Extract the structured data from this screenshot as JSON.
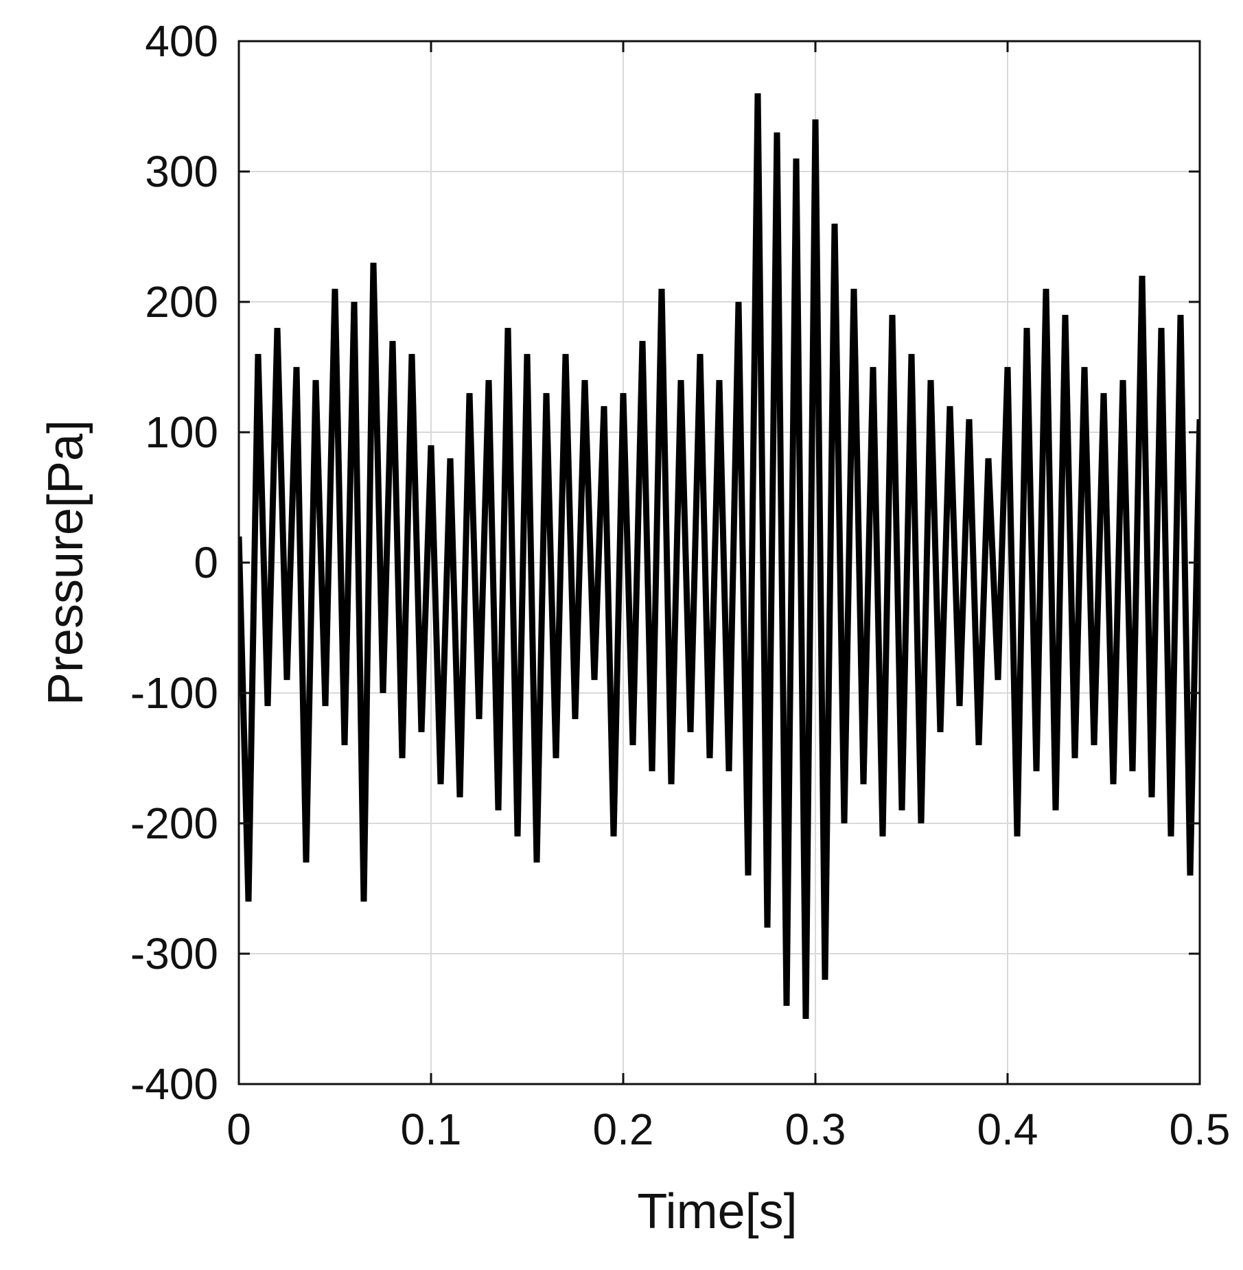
{
  "chart_data": {
    "type": "line",
    "title": "",
    "xlabel": "Time[s]",
    "ylabel": "Pressure[Pa]",
    "xlim": [
      0,
      0.5
    ],
    "ylim": [
      -400,
      400
    ],
    "x_ticks": [
      "0",
      "0.1",
      "0.2",
      "0.3",
      "0.4",
      "0.5"
    ],
    "y_ticks": [
      "400",
      "300",
      "200",
      "100",
      "0",
      "-100",
      "-200",
      "-300",
      "-400"
    ],
    "grid": true,
    "line_color": "#000000",
    "series": [
      {
        "x": [
          0.0,
          0.005,
          0.01,
          0.015,
          0.02,
          0.025,
          0.03,
          0.035,
          0.04,
          0.045,
          0.05,
          0.055,
          0.06,
          0.065,
          0.07,
          0.075,
          0.08,
          0.085,
          0.09,
          0.095,
          0.1,
          0.105,
          0.11,
          0.115,
          0.12,
          0.125,
          0.13,
          0.135,
          0.14,
          0.145,
          0.15,
          0.155,
          0.16,
          0.165,
          0.17,
          0.175,
          0.18,
          0.185,
          0.19,
          0.195,
          0.2,
          0.205,
          0.21,
          0.215,
          0.22,
          0.225,
          0.23,
          0.235,
          0.24,
          0.245,
          0.25,
          0.255,
          0.26,
          0.265,
          0.27,
          0.275,
          0.28,
          0.285,
          0.29,
          0.295,
          0.3,
          0.305,
          0.31,
          0.315,
          0.32,
          0.325,
          0.33,
          0.335,
          0.34,
          0.345,
          0.35,
          0.355,
          0.36,
          0.365,
          0.37,
          0.375,
          0.38,
          0.385,
          0.39,
          0.395,
          0.4,
          0.405,
          0.41,
          0.415,
          0.42,
          0.425,
          0.43,
          0.435,
          0.44,
          0.445,
          0.45,
          0.455,
          0.46,
          0.465,
          0.47,
          0.475,
          0.48,
          0.485,
          0.49,
          0.495,
          0.5
        ],
        "y": [
          20,
          -260,
          160,
          -110,
          180,
          -90,
          150,
          -230,
          140,
          -110,
          210,
          -140,
          200,
          -260,
          230,
          -100,
          170,
          -150,
          160,
          -130,
          90,
          -170,
          80,
          -180,
          130,
          -120,
          140,
          -190,
          180,
          -210,
          160,
          -230,
          130,
          -150,
          160,
          -120,
          140,
          -90,
          120,
          -210,
          130,
          -140,
          170,
          -160,
          210,
          -170,
          140,
          -130,
          160,
          -150,
          140,
          -160,
          200,
          -240,
          360,
          -280,
          330,
          -340,
          310,
          -350,
          340,
          -320,
          260,
          -200,
          210,
          -170,
          150,
          -210,
          190,
          -190,
          160,
          -200,
          140,
          -130,
          120,
          -110,
          110,
          -140,
          80,
          -90,
          150,
          -210,
          180,
          -160,
          210,
          -190,
          190,
          -150,
          150,
          -140,
          130,
          -170,
          140,
          -160,
          220,
          -180,
          180,
          -210,
          190,
          -240,
          110
        ]
      }
    ]
  }
}
